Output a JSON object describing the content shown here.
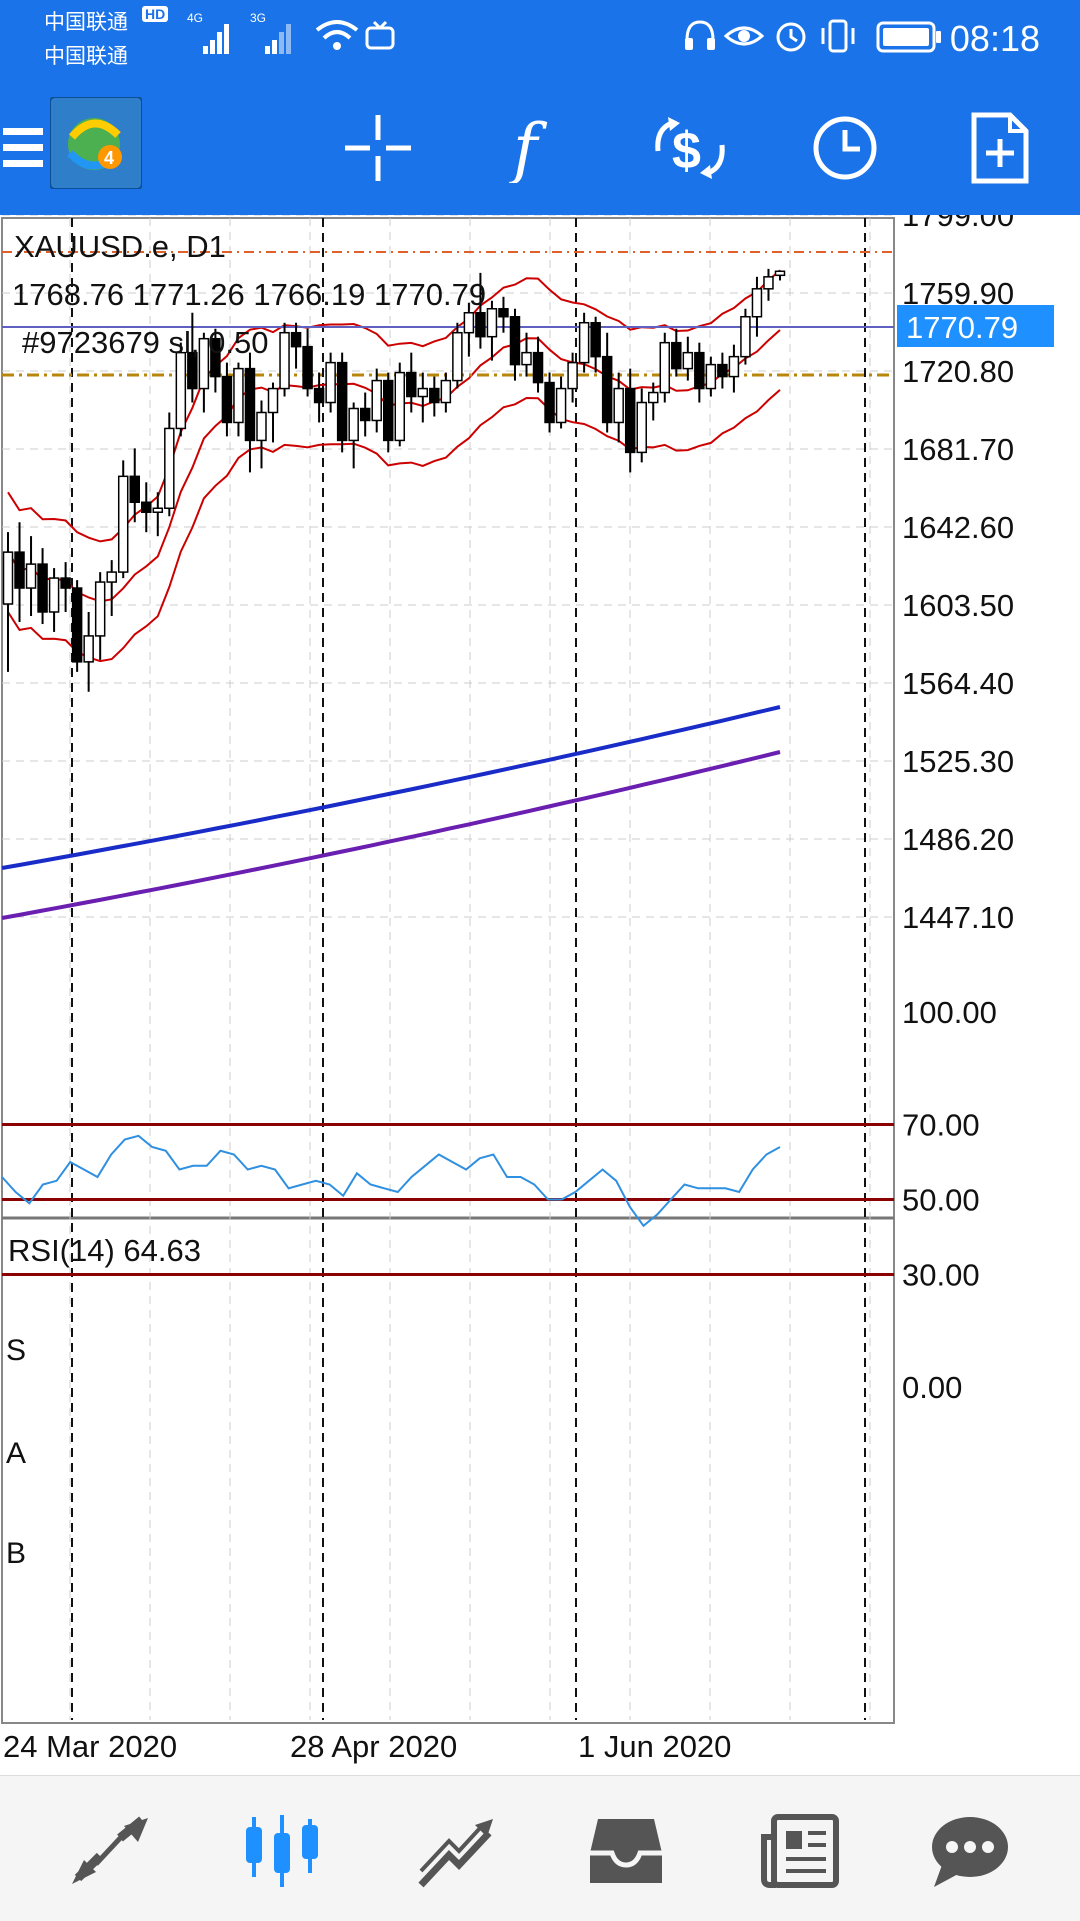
{
  "status_bar": {
    "carrier1": "中国联通",
    "carrier2": "中国联通",
    "net1": "4G",
    "net2": "3G",
    "hd": "HD",
    "time": "08:18"
  },
  "toolbar": {
    "icons": [
      "menu-icon",
      "mt4-logo",
      "crosshair-icon",
      "indicators-icon",
      "trade-icon",
      "timeframe-icon",
      "new-order-icon"
    ]
  },
  "chart": {
    "symbol_line": "XAUUSD.e, D1",
    "ohlc_line": "1768.76 1771.26 1766.19 1770.79",
    "order_line": "#9723679 sl, 0.50",
    "current_price": "1770.79",
    "y_ticks": [
      "1799.00",
      "1759.90",
      "1720.80",
      "1681.70",
      "1642.60",
      "1603.50",
      "1564.40",
      "1525.30",
      "1486.20",
      "1447.10"
    ],
    "x_labels": [
      "24 Mar 2020",
      "28 Apr 2020",
      "1 Jun 2020"
    ],
    "rsi_title": "RSI(14) 64.63",
    "rsi_ticks": [
      "100.00",
      "70.00",
      "50.00",
      "30.00",
      "0.00"
    ],
    "rsi_markers": [
      "S",
      "A",
      "B"
    ],
    "colors": {
      "price_label_bg": "#1e90ff",
      "bollinger": "#cc0000",
      "ma_blue": "#1a2cc8",
      "ma_purple": "#6a1fb0",
      "rsi_line": "#2f8fe0",
      "rsi_levels": "#8b0000",
      "sl_line": "#b8860b",
      "tp_line": "#e0602a",
      "price_line": "#6060c0"
    }
  },
  "chart_data": {
    "type": "candlestick",
    "symbol": "XAUUSD.e",
    "timeframe": "D1",
    "ylim": [
      1420,
      1830
    ],
    "grid": true,
    "candles": [
      [
        1604,
        1640,
        1570,
        1630
      ],
      [
        1630,
        1645,
        1595,
        1612
      ],
      [
        1612,
        1638,
        1598,
        1624
      ],
      [
        1624,
        1632,
        1594,
        1600
      ],
      [
        1600,
        1622,
        1590,
        1617
      ],
      [
        1617,
        1625,
        1600,
        1612
      ],
      [
        1612,
        1616,
        1570,
        1575
      ],
      [
        1575,
        1600,
        1560,
        1588
      ],
      [
        1588,
        1620,
        1576,
        1615
      ],
      [
        1615,
        1626,
        1598,
        1620
      ],
      [
        1620,
        1676,
        1617,
        1668
      ],
      [
        1668,
        1682,
        1645,
        1655
      ],
      [
        1655,
        1665,
        1640,
        1650
      ],
      [
        1650,
        1660,
        1638,
        1652
      ],
      [
        1652,
        1700,
        1648,
        1692
      ],
      [
        1692,
        1735,
        1688,
        1730
      ],
      [
        1730,
        1750,
        1705,
        1712
      ],
      [
        1712,
        1740,
        1700,
        1737
      ],
      [
        1737,
        1742,
        1710,
        1718
      ],
      [
        1718,
        1725,
        1688,
        1695
      ],
      [
        1695,
        1725,
        1688,
        1722
      ],
      [
        1722,
        1730,
        1670,
        1686
      ],
      [
        1686,
        1706,
        1672,
        1700
      ],
      [
        1700,
        1715,
        1685,
        1712
      ],
      [
        1712,
        1745,
        1708,
        1740
      ],
      [
        1740,
        1745,
        1722,
        1733
      ],
      [
        1733,
        1742,
        1708,
        1712
      ],
      [
        1712,
        1720,
        1695,
        1705
      ],
      [
        1705,
        1730,
        1700,
        1725
      ],
      [
        1725,
        1730,
        1680,
        1686
      ],
      [
        1686,
        1705,
        1672,
        1702
      ],
      [
        1702,
        1710,
        1688,
        1696
      ],
      [
        1696,
        1722,
        1690,
        1716
      ],
      [
        1716,
        1720,
        1680,
        1686
      ],
      [
        1686,
        1725,
        1683,
        1720
      ],
      [
        1720,
        1730,
        1700,
        1708
      ],
      [
        1708,
        1720,
        1695,
        1712
      ],
      [
        1712,
        1718,
        1698,
        1705
      ],
      [
        1705,
        1720,
        1700,
        1716
      ],
      [
        1716,
        1745,
        1712,
        1740
      ],
      [
        1740,
        1755,
        1728,
        1750
      ],
      [
        1750,
        1770,
        1732,
        1738
      ],
      [
        1738,
        1756,
        1726,
        1752
      ],
      [
        1752,
        1758,
        1740,
        1748
      ],
      [
        1748,
        1752,
        1716,
        1724
      ],
      [
        1724,
        1740,
        1718,
        1730
      ],
      [
        1730,
        1738,
        1710,
        1715
      ],
      [
        1715,
        1720,
        1690,
        1695
      ],
      [
        1695,
        1718,
        1692,
        1712
      ],
      [
        1712,
        1730,
        1705,
        1725
      ],
      [
        1725,
        1750,
        1720,
        1745
      ],
      [
        1745,
        1748,
        1720,
        1728
      ],
      [
        1728,
        1740,
        1690,
        1695
      ],
      [
        1695,
        1720,
        1685,
        1712
      ],
      [
        1712,
        1722,
        1670,
        1680
      ],
      [
        1680,
        1712,
        1675,
        1705
      ],
      [
        1705,
        1715,
        1696,
        1710
      ],
      [
        1710,
        1740,
        1705,
        1735
      ],
      [
        1735,
        1742,
        1718,
        1722
      ],
      [
        1722,
        1738,
        1716,
        1730
      ],
      [
        1730,
        1735,
        1705,
        1712
      ],
      [
        1712,
        1728,
        1708,
        1724
      ],
      [
        1724,
        1730,
        1712,
        1718
      ],
      [
        1718,
        1734,
        1710,
        1728
      ],
      [
        1728,
        1752,
        1724,
        1748
      ],
      [
        1748,
        1768,
        1738,
        1762
      ],
      [
        1762,
        1772,
        1756,
        1768
      ],
      [
        1768.76,
        1771.26,
        1766.19,
        1770.79
      ]
    ],
    "rsi_series": [
      56,
      52,
      49,
      54,
      55,
      60,
      58,
      56,
      62,
      66,
      67,
      64,
      63,
      58,
      59,
      59,
      63,
      62,
      58,
      59,
      58,
      53,
      54,
      55,
      54,
      51,
      57,
      54,
      53,
      52,
      56,
      59,
      62,
      60,
      58,
      61,
      62,
      56,
      56,
      54,
      50,
      50,
      52,
      55,
      58,
      55,
      48,
      43,
      46,
      50,
      54,
      53,
      53,
      53,
      52,
      58,
      62,
      64
    ],
    "rsi_levels": [
      70,
      50,
      30
    ],
    "rsi_ylim": [
      0,
      100
    ],
    "current_price": 1770.79,
    "stop_loss": 1750,
    "take_profit": 1803
  },
  "bottom_nav": {
    "icons": [
      "quotes-icon",
      "chart-icon",
      "trade-icon",
      "history-icon",
      "news-icon",
      "chat-icon"
    ],
    "active": "chart-icon"
  }
}
